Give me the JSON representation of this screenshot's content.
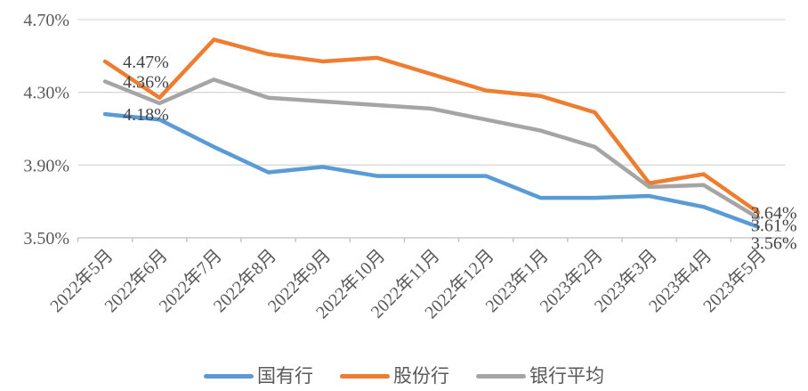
{
  "chart_data": {
    "type": "line",
    "title": "",
    "categories": [
      "2022年5月",
      "2022年6月",
      "2022年7月",
      "2022年8月",
      "2022年9月",
      "2022年10月",
      "2022年11月",
      "2022年12月",
      "2023年1月",
      "2023年2月",
      "2023年3月",
      "2023年4月",
      "2023年5月"
    ],
    "y_axis": {
      "min": 3.5,
      "max": 4.7,
      "tick_labels": [
        "4.70%",
        "4.30%",
        "3.90%",
        "3.50%"
      ],
      "tick_values": [
        4.7,
        4.3,
        3.9,
        3.5
      ],
      "grid": true
    },
    "series": [
      {
        "name": "国有行",
        "color": "#5B9BD5",
        "values": [
          4.18,
          4.15,
          4.0,
          3.86,
          3.89,
          3.84,
          3.84,
          3.84,
          3.72,
          3.72,
          3.73,
          3.67,
          3.56
        ],
        "start_label": "4.18%",
        "end_label": "3.56%"
      },
      {
        "name": "股份行",
        "color": "#ED7D31",
        "values": [
          4.47,
          4.27,
          4.59,
          4.51,
          4.47,
          4.49,
          4.4,
          4.31,
          4.28,
          4.19,
          3.8,
          3.85,
          3.64
        ],
        "start_label": "4.47%",
        "end_label": "3.64%"
      },
      {
        "name": "银行平均",
        "color": "#A5A5A5",
        "values": [
          4.36,
          4.24,
          4.37,
          4.27,
          4.25,
          4.23,
          4.21,
          4.15,
          4.09,
          4.0,
          3.78,
          3.79,
          3.61
        ],
        "start_label": "4.36%",
        "end_label": "3.61%"
      }
    ],
    "legend_position": "bottom",
    "styles": {
      "grid_color": "#D9D9D9",
      "axis_color": "#BFBFBF",
      "axis_text_color": "#595959",
      "data_label_color": "#444444",
      "background": "#FFFFFF"
    }
  }
}
